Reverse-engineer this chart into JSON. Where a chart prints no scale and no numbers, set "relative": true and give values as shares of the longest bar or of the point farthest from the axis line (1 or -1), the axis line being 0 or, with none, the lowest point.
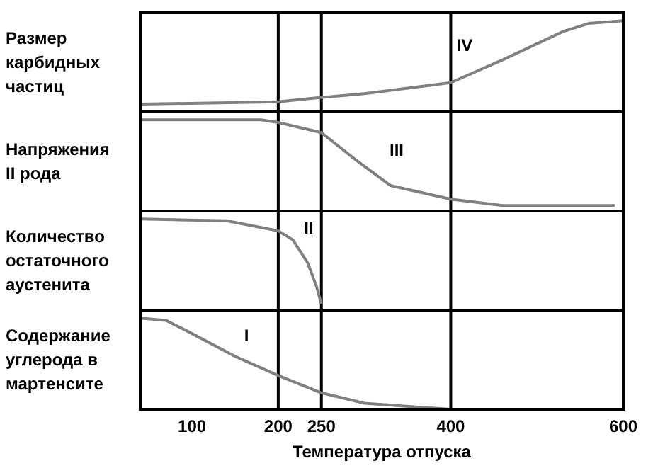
{
  "chart_data": [
    {
      "type": "line",
      "relative": true,
      "ylabel": "Размер\nкарбидных\nчастиц",
      "xlim": [
        40,
        600
      ],
      "tick_labels": false,
      "ref_lines": [
        {
          "axis": "x",
          "value": 200
        },
        {
          "axis": "x",
          "value": 250
        },
        {
          "axis": "x",
          "value": 400
        }
      ],
      "annotations": [
        "IV"
      ],
      "series": [
        {
          "color": "#808080",
          "x": [
            40,
            200,
            240,
            300,
            400,
            460,
            530,
            560,
            600
          ],
          "values": [
            0.085,
            0.11,
            0.15,
            0.2,
            0.32,
            0.57,
            0.88,
            0.97,
            1
          ]
        }
      ]
    },
    {
      "type": "line",
      "relative": true,
      "ylabel": "Напряжения\nII рода",
      "xlim": [
        40,
        600
      ],
      "tick_labels": false,
      "ref_lines": [
        {
          "axis": "x",
          "value": 200
        },
        {
          "axis": "x",
          "value": 250
        },
        {
          "axis": "x",
          "value": 400
        }
      ],
      "annotations": [
        "III"
      ],
      "series": [
        {
          "color": "#808080",
          "x": [
            40,
            180,
            200,
            250,
            290,
            330,
            400,
            460,
            590
          ],
          "values": [
            1,
            1,
            0.97,
            0.86,
            0.56,
            0.28,
            0.13,
            0.06,
            0.06
          ]
        }
      ]
    },
    {
      "type": "line",
      "relative": true,
      "ylabel": "Количество\nостаточного\nаустенита",
      "xlim": [
        40,
        600
      ],
      "tick_labels": false,
      "ref_lines": [
        {
          "axis": "x",
          "value": 200
        },
        {
          "axis": "x",
          "value": 250
        },
        {
          "axis": "x",
          "value": 400
        }
      ],
      "annotations": [
        "II"
      ],
      "series": [
        {
          "color": "#808080",
          "x": [
            40,
            140,
            200,
            217,
            234,
            244,
            250
          ],
          "values": [
            1,
            0.98,
            0.87,
            0.77,
            0.52,
            0.27,
            0.07
          ]
        }
      ]
    },
    {
      "type": "line",
      "relative": true,
      "ylabel": "Содержание\nуглерода в\nмартенсите",
      "xlabel": "Температура отпуска",
      "xlim": [
        40,
        600
      ],
      "xticks": [
        100,
        200,
        250,
        400,
        600
      ],
      "tick_labels": "x",
      "ref_lines": [
        {
          "axis": "x",
          "value": 200
        },
        {
          "axis": "x",
          "value": 250
        },
        {
          "axis": "x",
          "value": 400
        }
      ],
      "annotations": [
        "I"
      ],
      "series": [
        {
          "color": "#808080",
          "x": [
            40,
            70,
            100,
            150,
            200,
            250,
            300,
            360,
            400
          ],
          "values": [
            1,
            0.975,
            0.83,
            0.58,
            0.37,
            0.18,
            0.066,
            0.026,
            0
          ]
        }
      ]
    }
  ]
}
